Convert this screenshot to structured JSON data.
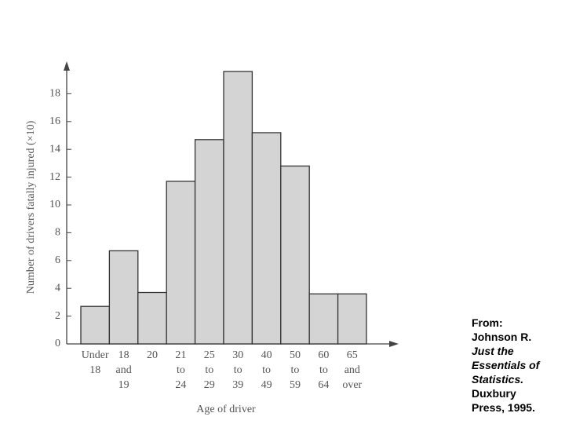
{
  "chart_data": {
    "type": "bar",
    "ylabel": "Number of drivers fatally injured (×10)",
    "xlabel": "Age of driver",
    "categories": [
      [
        "Under",
        "18"
      ],
      [
        "18",
        "and",
        "19"
      ],
      [
        "20"
      ],
      [
        "21",
        "to",
        "24"
      ],
      [
        "25",
        "to",
        "29"
      ],
      [
        "30",
        "to",
        "39"
      ],
      [
        "40",
        "to",
        "49"
      ],
      [
        "50",
        "to",
        "59"
      ],
      [
        "60",
        "to",
        "64"
      ],
      [
        "65",
        "and",
        "over"
      ]
    ],
    "values": [
      2.7,
      6.7,
      3.7,
      11.7,
      14.7,
      19.6,
      15.2,
      12.8,
      3.6,
      3.6
    ],
    "color": "#d4d4d4",
    "ylim": [
      0,
      20
    ],
    "yticks": [
      0,
      2,
      4,
      6,
      8,
      10,
      12,
      14,
      16,
      18
    ]
  },
  "citation": {
    "from": "From:",
    "author": "Johnson R.",
    "title": [
      "Just the",
      "Essentials of",
      "Statistics."
    ],
    "publisher": [
      "Duxbury",
      "Press, 1995."
    ]
  }
}
